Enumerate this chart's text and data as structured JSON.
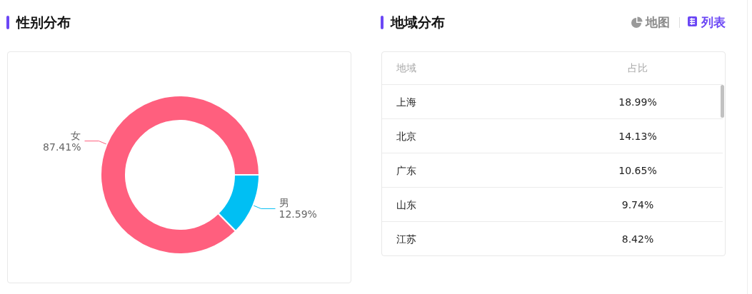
{
  "chart_data": [
    {
      "type": "donut",
      "title": "性别分布",
      "categories": [
        "男",
        "女"
      ],
      "values": [
        12.59,
        87.41
      ],
      "value_labels": [
        "12.59%",
        "87.41%"
      ],
      "colors": [
        "#00bff3",
        "#ff5f7e"
      ]
    },
    {
      "type": "other",
      "title": "地域分布",
      "xlabel": "地域",
      "ylabel": "占比",
      "categories": [
        "上海",
        "北京",
        "广东",
        "山东",
        "江苏"
      ],
      "values": [
        18.99,
        14.13,
        10.65,
        9.74,
        8.42
      ],
      "value_labels": [
        "18.99%",
        "14.13%",
        "10.65%",
        "9.74%",
        "8.42%"
      ],
      "annotations": [
        "地图",
        "列表"
      ]
    }
  ]
}
